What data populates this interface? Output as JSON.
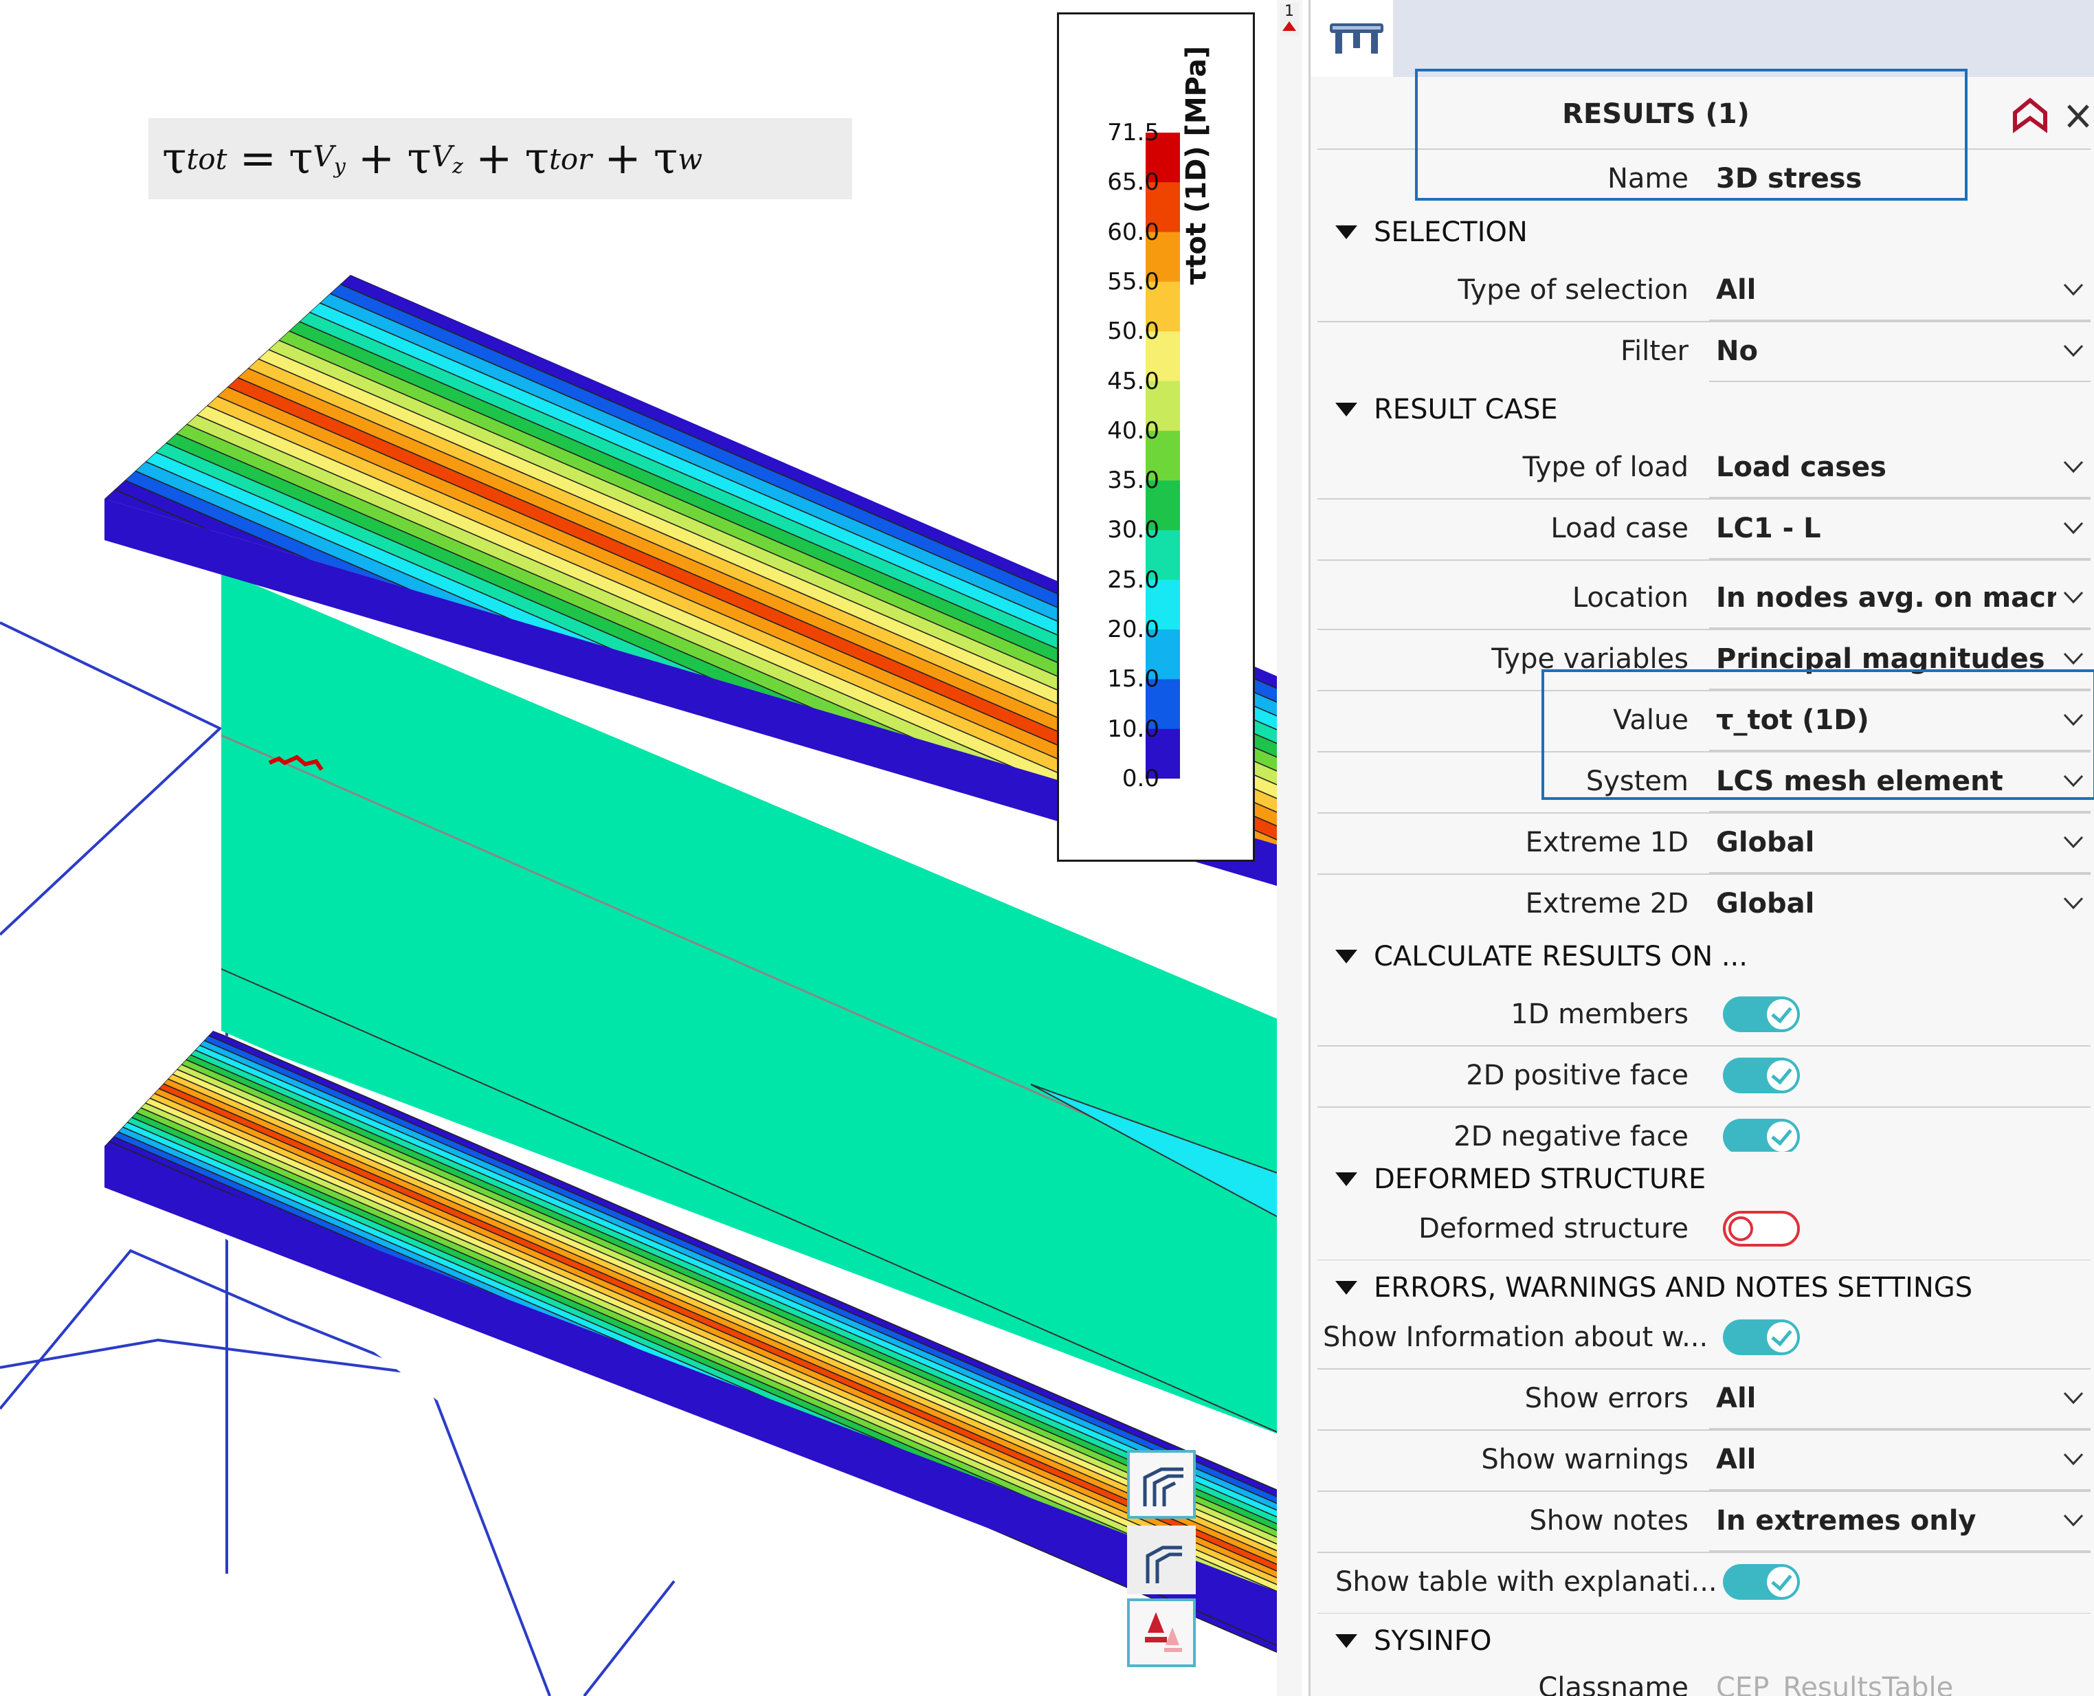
{
  "viewport": {
    "formula": {
      "lhs": "τ",
      "lhs_sub": "tot",
      "eq": "=",
      "plus": "+",
      "t1": "τ",
      "t1_sub": "V",
      "t1_subsub": "y",
      "t2": "τ",
      "t2_sub": "V",
      "t2_subsub": "z",
      "t3": "τ",
      "t3_sub": "tor",
      "t4": "τ",
      "t4_sub": "w"
    },
    "legend": {
      "title": "τtot (1D) [MPa]",
      "ticks": [
        "71.5",
        "65.0",
        "60.0",
        "55.0",
        "50.0",
        "45.0",
        "40.0",
        "35.0",
        "30.0",
        "25.0",
        "20.0",
        "15.0",
        "10.0",
        "0.0"
      ],
      "colors": [
        "#d40000",
        "#ee4400",
        "#f89a10",
        "#fcc838",
        "#f6ef70",
        "#c9ea5a",
        "#6fd63a",
        "#1ec34a",
        "#12e0a8",
        "#17e8f4",
        "#10b2f0",
        "#0f5ae6",
        "#2a10c8"
      ]
    },
    "corner_mark": "1"
  },
  "panel": {
    "header_title": "RESULTS (1)",
    "name_label": "Name",
    "name_value": "3D stress",
    "sections": {
      "selection": "SELECTION",
      "result_case": "RESULT CASE",
      "calculate": "CALCULATE RESULTS ON ...",
      "deformed": "DEFORMED STRUCTURE",
      "errors": "ERRORS, WARNINGS AND NOTES SETTINGS",
      "sysinfo": "SYSINFO"
    },
    "rows": {
      "type_of_selection": {
        "label": "Type of selection",
        "value": "All"
      },
      "filter": {
        "label": "Filter",
        "value": "No"
      },
      "type_of_load": {
        "label": "Type of load",
        "value": "Load cases"
      },
      "load_case": {
        "label": "Load case",
        "value": "LC1 - L"
      },
      "location": {
        "label": "Location",
        "value": "In nodes avg. on macro"
      },
      "type_variables": {
        "label": "Type variables",
        "value": "Principal magnitudes"
      },
      "value": {
        "label": "Value",
        "value": "τ_tot (1D)"
      },
      "system": {
        "label": "System",
        "value": "LCS mesh element"
      },
      "extreme_1d": {
        "label": "Extreme 1D",
        "value": "Global"
      },
      "extreme_2d": {
        "label": "Extreme 2D",
        "value": "Global"
      },
      "members_1d": {
        "label": "1D members"
      },
      "positive_face": {
        "label": "2D positive face"
      },
      "negative_face": {
        "label": "2D negative face"
      },
      "deformed_structure": {
        "label": "Deformed structure"
      },
      "show_information": {
        "label": "Show Information about w..."
      },
      "show_errors": {
        "label": "Show errors",
        "value": "All"
      },
      "show_warnings": {
        "label": "Show warnings",
        "value": "All"
      },
      "show_notes": {
        "label": "Show notes",
        "value": "In extremes only"
      },
      "show_table": {
        "label": "Show table with explanati..."
      },
      "classname": {
        "label": "Classname",
        "value": "CEP_ResultsTable"
      }
    }
  },
  "colors": {
    "accent_teal": "#3cb8c4",
    "highlight_blue": "#1f6fb5",
    "toggle_off_red": "#e0313a",
    "web_green": "#00e6a8"
  },
  "icons": {
    "panel": "structure-icon",
    "pin": "pin-icon",
    "close": "close-icon",
    "tools": [
      "member-view-icon",
      "member-view-alt-icon",
      "load-icon"
    ]
  }
}
